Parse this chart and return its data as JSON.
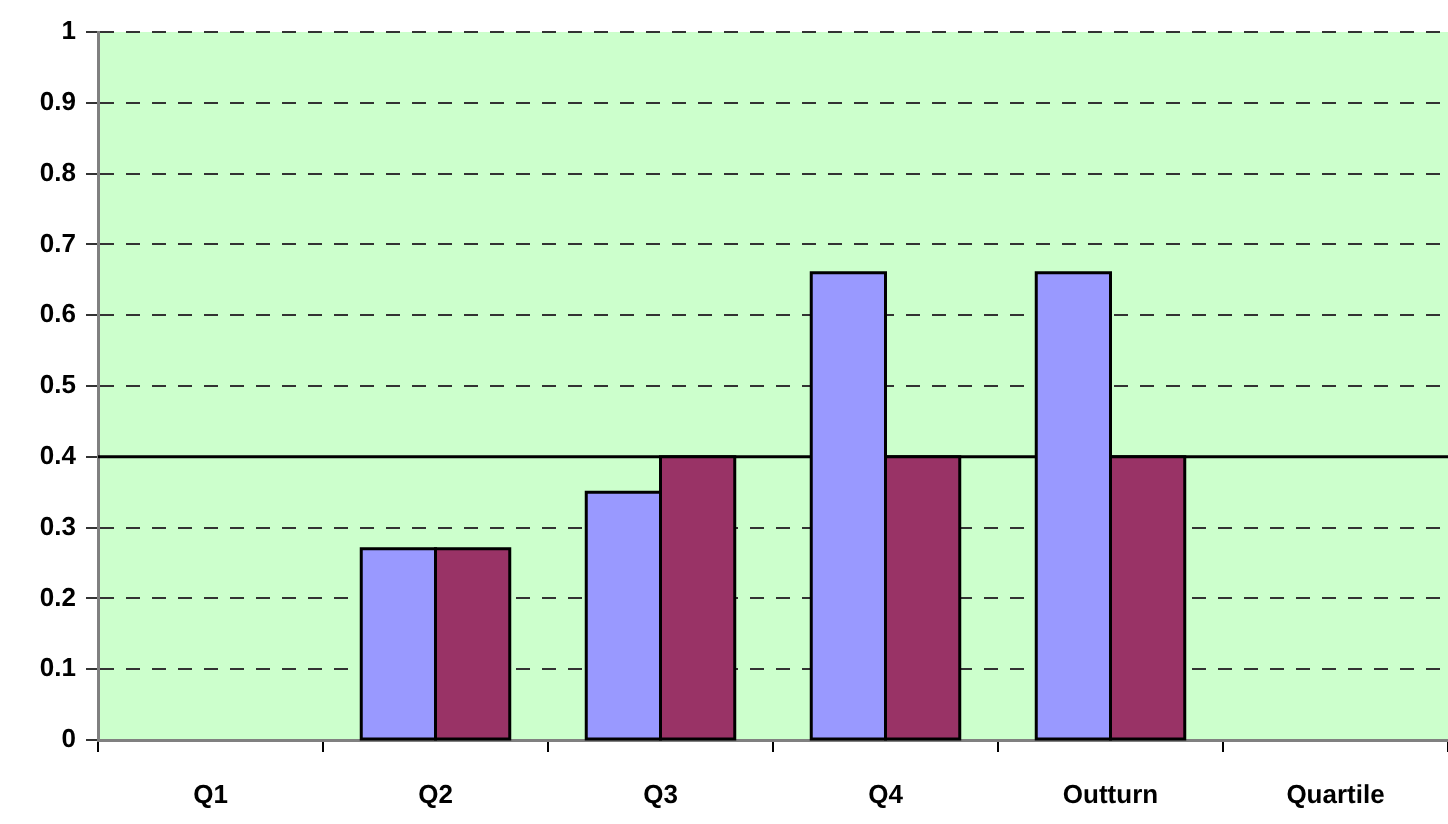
{
  "chart_data": {
    "type": "bar",
    "categories": [
      "Q1",
      "Q2",
      "Q3",
      "Q4",
      "Outturn",
      "Quartile"
    ],
    "series": [
      {
        "color": "#9999ff",
        "values": [
          null,
          0.27,
          0.35,
          0.66,
          0.66,
          null
        ]
      },
      {
        "color": "#993366",
        "values": [
          null,
          0.27,
          0.4,
          0.4,
          0.4,
          null
        ]
      }
    ],
    "ylim": [
      0,
      1
    ],
    "yticks": [
      0,
      0.1,
      0.2,
      0.3,
      0.4,
      0.5,
      0.6,
      0.7,
      0.8,
      0.9,
      1
    ],
    "grid": "y",
    "ref_lines": [
      {
        "axis": "y",
        "value": 0.4,
        "color": "#000000"
      }
    ]
  }
}
